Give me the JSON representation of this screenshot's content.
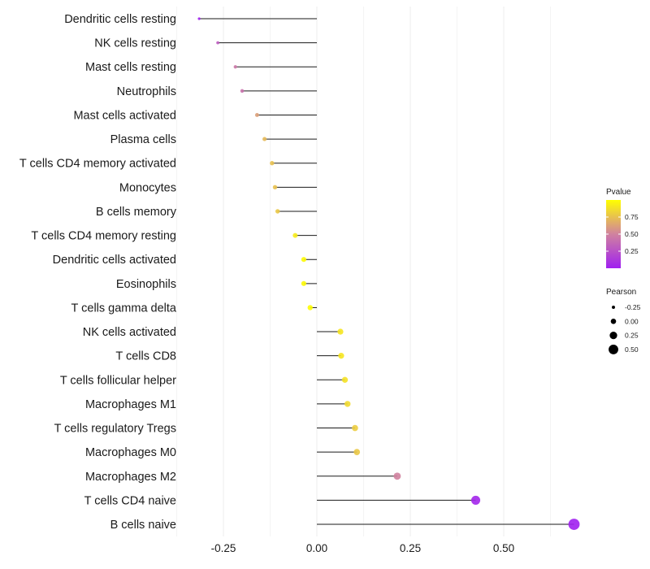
{
  "chart_data": {
    "type": "lollipop",
    "title": "",
    "xlabel": "",
    "ylabel": "",
    "xlim": [
      -0.34,
      0.7
    ],
    "x_ticks": [
      -0.25,
      0.0,
      0.25,
      0.5
    ],
    "x_tick_labels": [
      "-0.25",
      "0.00",
      "0.25",
      "0.50"
    ],
    "grid": true,
    "baseline": 0,
    "categories": [
      "Dendritic cells resting",
      "NK cells resting",
      "Mast cells resting",
      "Neutrophils",
      "Mast cells activated",
      "Plasma cells",
      "T cells CD4 memory activated",
      "Monocytes",
      "B cells memory",
      "T cells CD4 memory resting",
      "Dendritic cells activated",
      "Eosinophils",
      "T cells gamma delta",
      "NK cells activated",
      "T cells CD8",
      "T cells follicular helper",
      "Macrophages M1",
      "T cells regulatory  Tregs ",
      "Macrophages M0",
      "Macrophages M2",
      "T cells CD4 naive",
      "B cells naive"
    ],
    "pearson": [
      -0.315,
      -0.265,
      -0.218,
      -0.2,
      -0.16,
      -0.14,
      -0.12,
      -0.112,
      -0.105,
      -0.058,
      -0.035,
      -0.035,
      -0.018,
      0.063,
      0.065,
      0.075,
      0.082,
      0.102,
      0.107,
      0.215,
      0.425,
      0.688
    ],
    "pvalue": [
      0.01,
      0.3,
      0.45,
      0.42,
      0.62,
      0.72,
      0.75,
      0.75,
      0.78,
      0.92,
      0.98,
      0.98,
      0.99,
      0.9,
      0.9,
      0.88,
      0.85,
      0.8,
      0.78,
      0.5,
      0.03,
      0.0
    ],
    "legend": {
      "color": {
        "title": "Pvalue",
        "range": [
          0,
          1
        ],
        "breaks": [
          0.25,
          0.5,
          0.75
        ],
        "labels": [
          "0.25",
          "0.50",
          "0.75"
        ],
        "low_color": "#a020f0",
        "high_color": "#ffff00",
        "placement": "right"
      },
      "size": {
        "title": "Pearson",
        "breaks": [
          -0.25,
          0.0,
          0.25,
          0.5
        ],
        "labels": [
          "-0.25",
          "0.00",
          "0.25",
          "0.50"
        ],
        "placement": "right"
      }
    }
  }
}
